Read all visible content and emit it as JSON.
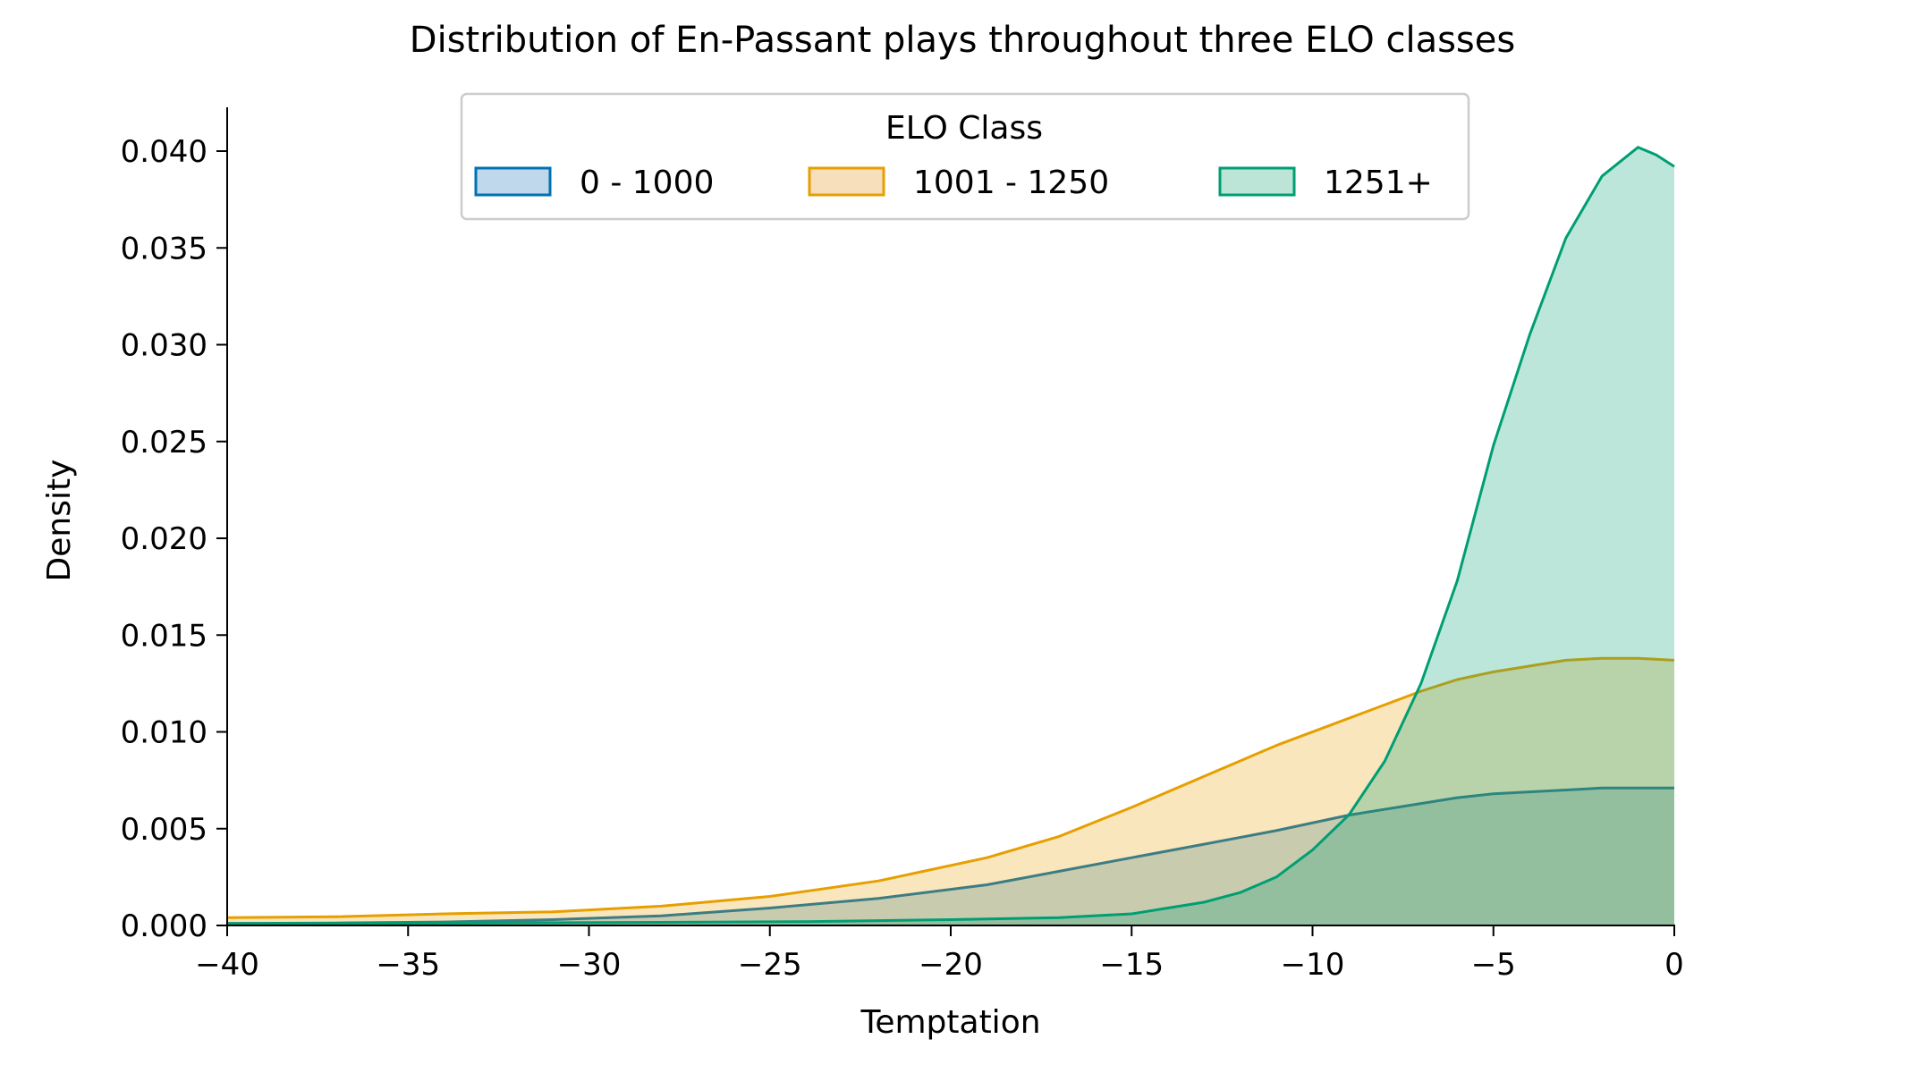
{
  "chart_data": {
    "type": "area",
    "title": "Distribution of En-Passant plays throughout three ELO classes",
    "xlabel": "Temptation",
    "ylabel": "Density",
    "xlim": [
      -40,
      0
    ],
    "ylim": [
      0,
      0.042
    ],
    "x_ticks": [
      -40,
      -35,
      -30,
      -25,
      -20,
      -15,
      -10,
      -5,
      0
    ],
    "x_tick_labels": [
      "−40",
      "−35",
      "−30",
      "−25",
      "−20",
      "−15",
      "−10",
      "−5",
      "0"
    ],
    "y_ticks": [
      0,
      0.005,
      0.01,
      0.015,
      0.02,
      0.025,
      0.03,
      0.035,
      0.04
    ],
    "y_tick_labels": [
      "0.000",
      "0.005",
      "0.010",
      "0.015",
      "0.020",
      "0.025",
      "0.030",
      "0.035",
      "0.040"
    ],
    "grid": false,
    "legend": {
      "title": "ELO Class",
      "placement": "top-center",
      "columns": 3
    },
    "series": [
      {
        "name": "0 - 1000",
        "color": "#0072b2",
        "fill": "#c0d8ec",
        "x": [
          -40,
          -37,
          -34,
          -31,
          -28,
          -25,
          -22,
          -19,
          -17,
          -15,
          -13,
          -11,
          -9,
          -7,
          -6,
          -5,
          -4,
          -3,
          -2,
          -1,
          0
        ],
        "y": [
          0.0001,
          0.00013,
          0.00018,
          0.0003,
          0.0005,
          0.0009,
          0.0014,
          0.0021,
          0.0028,
          0.0035,
          0.0042,
          0.0049,
          0.0057,
          0.0063,
          0.0066,
          0.0068,
          0.0069,
          0.007,
          0.0071,
          0.0071,
          0.0071
        ]
      },
      {
        "name": "1001 - 1250",
        "color": "#e69f00",
        "fill": "#f7dfbb",
        "x": [
          -40,
          -37,
          -34,
          -31,
          -28,
          -25,
          -22,
          -19,
          -17,
          -15,
          -13,
          -11,
          -9,
          -7,
          -6,
          -5,
          -4,
          -3,
          -2,
          -1,
          0
        ],
        "y": [
          0.0004,
          0.00045,
          0.0006,
          0.0007,
          0.001,
          0.0015,
          0.0023,
          0.0035,
          0.0046,
          0.0061,
          0.0077,
          0.0093,
          0.0107,
          0.0121,
          0.0127,
          0.0131,
          0.0134,
          0.0137,
          0.0138,
          0.0138,
          0.0137
        ]
      },
      {
        "name": "1251+",
        "color": "#009e73",
        "fill": "#bce5d8",
        "x": [
          -40,
          -34,
          -28,
          -24,
          -20,
          -17,
          -15,
          -14,
          -13,
          -12,
          -11,
          -10,
          -9,
          -8,
          -7,
          -6,
          -5,
          -4,
          -3,
          -2,
          -1,
          -0.5,
          0
        ],
        "y": [
          0.0001,
          0.00012,
          0.00016,
          0.0002,
          0.0003,
          0.0004,
          0.0006,
          0.0009,
          0.0012,
          0.0017,
          0.0025,
          0.0039,
          0.0057,
          0.0085,
          0.0125,
          0.0178,
          0.0248,
          0.0305,
          0.0355,
          0.0387,
          0.0402,
          0.0398,
          0.0392
        ]
      }
    ]
  }
}
